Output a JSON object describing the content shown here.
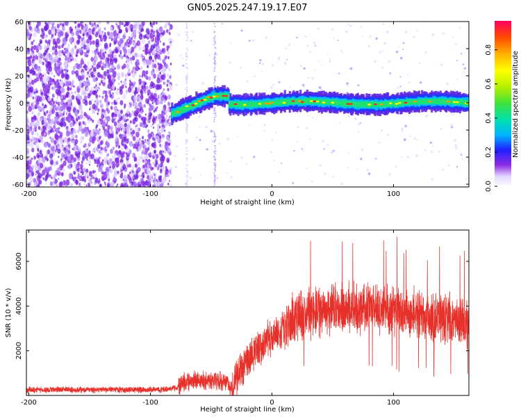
{
  "title": "GN05.2025.247.19.17.E07",
  "chart_data": [
    {
      "type": "heatmap",
      "title": "GN05.2025.247.19.17.E07",
      "xlabel": "Height of straight line (km)",
      "ylabel": "Frequency (Hz)",
      "xlim": [
        -202,
        162
      ],
      "ylim": [
        -62,
        60
      ],
      "xticks": [
        -200,
        -100,
        0,
        100
      ],
      "yticks": [
        60,
        40,
        20,
        0,
        -20,
        -40,
        -60
      ],
      "colorbar": {
        "label": "Normalized spectral amplitude",
        "range": [
          0,
          0.97
        ],
        "ticks": [
          0.0,
          0.2,
          0.4,
          0.6,
          0.8
        ]
      },
      "regions": [
        {
          "name": "noise",
          "x": [
            -202,
            -83
          ],
          "description_amplitude": 0.2
        },
        {
          "name": "signal-ramp",
          "x": [
            -83,
            -48
          ],
          "freq_start": -8,
          "freq_end": 5
        },
        {
          "name": "signal-flat",
          "x": [
            -48,
            162
          ],
          "freq": 0
        }
      ]
    },
    {
      "type": "line",
      "xlabel": "Height of straight line (km)",
      "ylabel": "SNR (10 * v/v)",
      "xlim": [
        -202,
        162
      ],
      "ylim": [
        0,
        7400
      ],
      "xticks": [
        -200,
        -100,
        0,
        100
      ],
      "yticks": [
        2000,
        4000,
        6000
      ],
      "series": [
        {
          "name": "SNR",
          "color": "#e8302a",
          "points": [
            {
              "x": -202,
              "y": 250
            },
            {
              "x": -150,
              "y": 250
            },
            {
              "x": -90,
              "y": 260
            },
            {
              "x": -77,
              "y": 350
            },
            {
              "x": -73,
              "y": 600
            },
            {
              "x": -60,
              "y": 700
            },
            {
              "x": -45,
              "y": 650
            },
            {
              "x": -38,
              "y": 600
            },
            {
              "x": -33,
              "y": 250
            },
            {
              "x": -28,
              "y": 1000
            },
            {
              "x": -20,
              "y": 1700
            },
            {
              "x": -10,
              "y": 2200
            },
            {
              "x": 0,
              "y": 2600
            },
            {
              "x": 10,
              "y": 3000
            },
            {
              "x": 20,
              "y": 3500
            },
            {
              "x": 40,
              "y": 3800
            },
            {
              "x": 60,
              "y": 3900
            },
            {
              "x": 80,
              "y": 3900
            },
            {
              "x": 100,
              "y": 3800
            },
            {
              "x": 130,
              "y": 3500
            },
            {
              "x": 162,
              "y": 3300
            }
          ]
        }
      ]
    }
  ]
}
